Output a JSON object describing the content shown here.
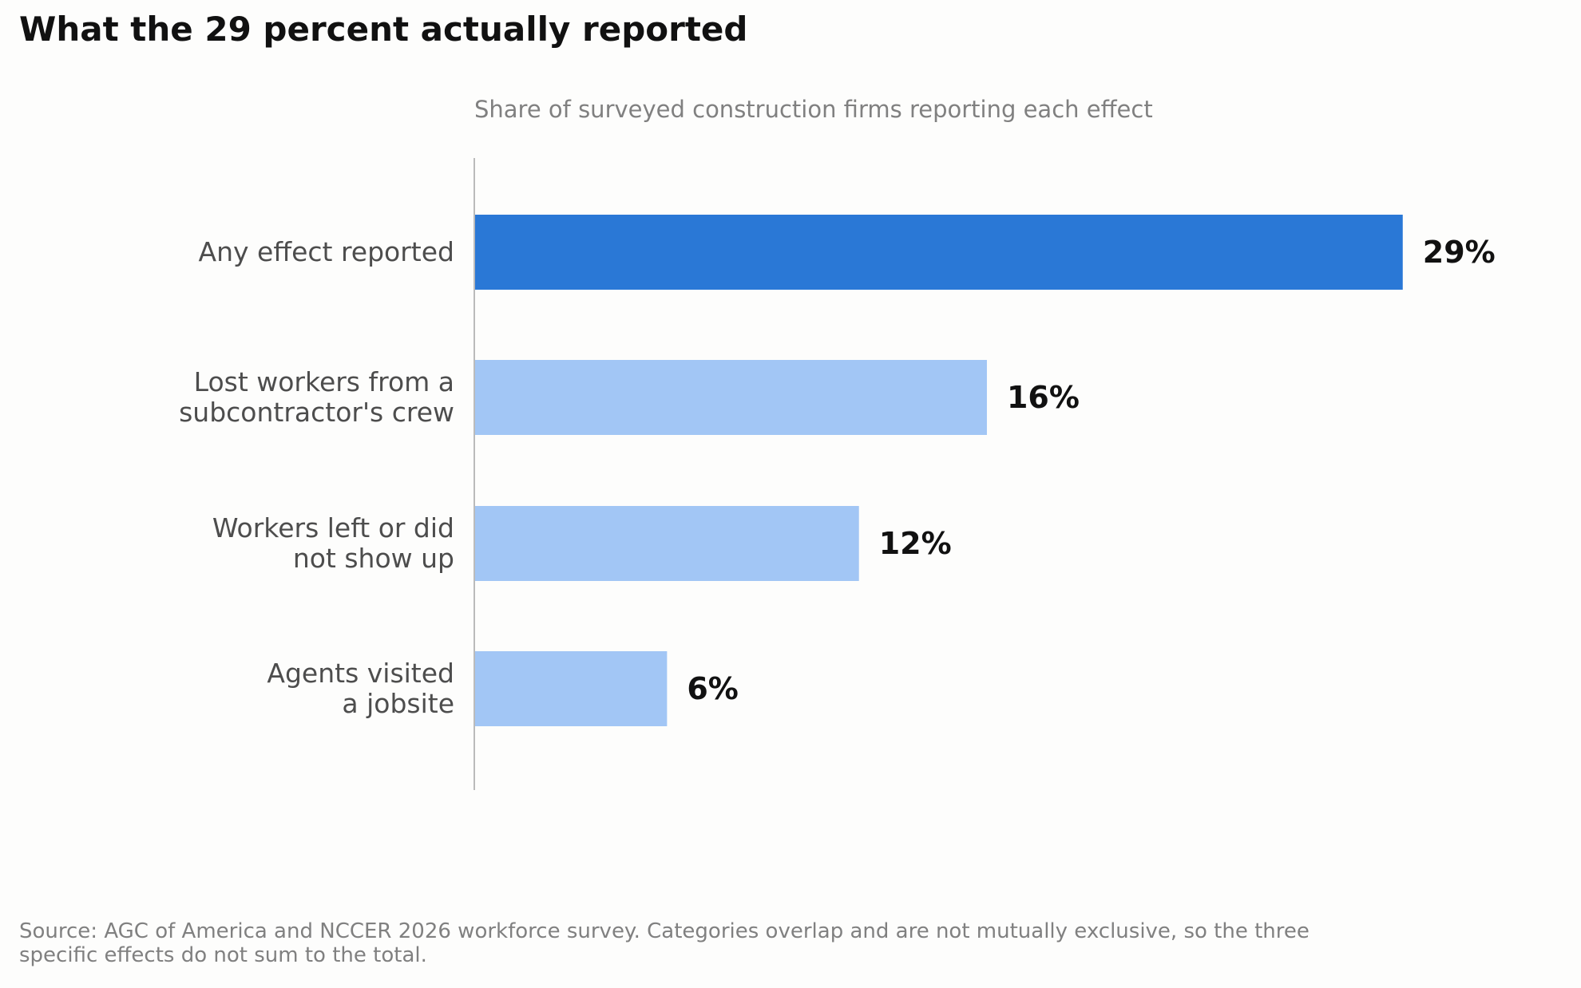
{
  "header": {
    "title": "What the 29 percent actually reported"
  },
  "chart_data": {
    "type": "bar",
    "orientation": "horizontal",
    "subtitle": "Share of surveyed construction firms reporting each effect",
    "categories": [
      [
        "Any effect reported"
      ],
      [
        "Lost workers from a",
        "subcontractor's crew"
      ],
      [
        "Workers left or did",
        "not show up"
      ],
      [
        "Agents visited",
        "a jobsite"
      ]
    ],
    "values": [
      29,
      16,
      12,
      6
    ],
    "value_labels": [
      "29%",
      "16%",
      "12%",
      "6%"
    ],
    "unit": "%",
    "xlim": [
      0,
      33
    ],
    "grid": false,
    "legend": "none",
    "highlight_index": 0
  },
  "colors": {
    "highlight": "#2a78d6",
    "muted": "#a2c6f5",
    "axis": "#bbbbbb",
    "category_text": "#4d4d4d",
    "value_text": "#111111"
  },
  "footer": {
    "source": "Source: AGC of America and NCCER 2026 workforce survey. Categories overlap and are not mutually exclusive, so the three specific effects do not sum to the total."
  }
}
